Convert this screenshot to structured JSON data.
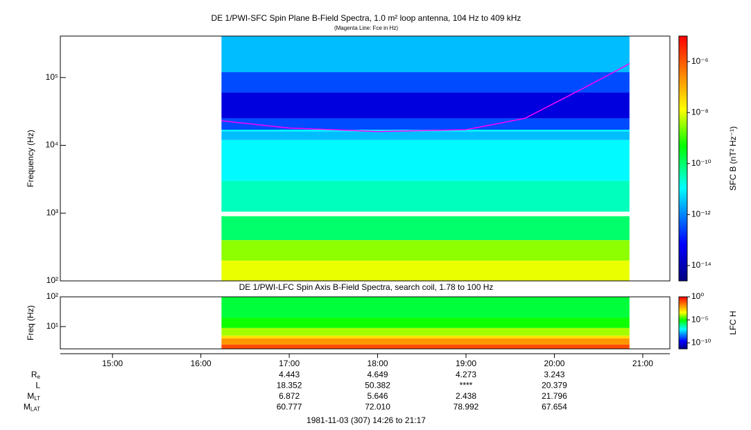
{
  "chart_data": [
    {
      "type": "spectrogram",
      "title": "DE 1/PWI-SFC  Spin Plane B-Field Spectra, 1.0 m² loop antenna, 104 Hz to 409 kHz",
      "subtitle": "(Magenta Line: Fce in Hz)",
      "y_label": "Frequency (Hz)",
      "xlim": [
        866,
        1277
      ],
      "ylim": [
        100,
        409000
      ],
      "log_y": true,
      "yticks": [
        {
          "value": 100,
          "label": "10²"
        },
        {
          "value": 1000,
          "label": "10³"
        },
        {
          "value": 10000,
          "label": "10⁴"
        },
        {
          "value": 100000,
          "label": "10⁵"
        }
      ],
      "time_range": [
        974,
        1251
      ],
      "bands": [
        {
          "lo": 100,
          "hi": 200,
          "value": 1e-08
        },
        {
          "lo": 200,
          "hi": 400,
          "value": 3e-09
        },
        {
          "lo": 400,
          "hi": 900,
          "value": 1e-10
        },
        {
          "lo": 1050,
          "hi": 3000,
          "value": 3e-11
        },
        {
          "lo": 3000,
          "hi": 12000,
          "value": 1e-11
        },
        {
          "lo": 12000,
          "hi": 16000,
          "value": 3e-12
        },
        {
          "lo": 16000,
          "hi": 17000,
          "value": 1e-11
        },
        {
          "lo": 17000,
          "hi": 25000,
          "value": 3e-13
        },
        {
          "lo": 25000,
          "hi": 60000,
          "value": 3e-14
        },
        {
          "lo": 60000,
          "hi": 120000,
          "value": 3e-13
        },
        {
          "lo": 120000,
          "hi": 409000,
          "value": 3e-12
        }
      ],
      "line": {
        "color": "#ff00ff",
        "x": [
          974,
          1020,
          1080,
          1140,
          1180,
          1220,
          1251
        ],
        "y": [
          23000,
          18000,
          16000,
          17000,
          25000,
          70000,
          160000
        ]
      },
      "colorbar": {
        "label": "SFC B (nT² Hz⁻¹)",
        "lim": [
          2.5e-15,
          1e-05
        ],
        "ticks": [
          {
            "value": 1e-06,
            "label": "10⁻⁶"
          },
          {
            "value": 1e-08,
            "label": "10⁻⁸"
          },
          {
            "value": 1e-10,
            "label": "10⁻¹⁰"
          },
          {
            "value": 1e-12,
            "label": "10⁻¹²"
          },
          {
            "value": 1e-14,
            "label": "10⁻¹⁴"
          }
        ]
      }
    },
    {
      "type": "spectrogram",
      "title": "DE 1/PWI-LFC  Spin Axis B-Field Spectra, search coil, 1.78 to 100 Hz",
      "y_label": "Freq (Hz)",
      "xlim": [
        866,
        1277
      ],
      "ylim": [
        1.78,
        100
      ],
      "log_y": true,
      "xticks": [
        {
          "value": 900,
          "label": "15:00"
        },
        {
          "value": 960,
          "label": "16:00"
        },
        {
          "value": 1020,
          "label": "17:00"
        },
        {
          "value": 1080,
          "label": "18:00"
        },
        {
          "value": 1140,
          "label": "19:00"
        },
        {
          "value": 1200,
          "label": "20:00"
        },
        {
          "value": 1260,
          "label": "21:00"
        }
      ],
      "yticks": [
        {
          "value": 10,
          "label": "10¹"
        },
        {
          "value": 100,
          "label": "10²"
        }
      ],
      "time_range": [
        974,
        1251
      ],
      "bands": [
        {
          "lo": 1.78,
          "hi": 2.5,
          "value": 0.1
        },
        {
          "lo": 2.5,
          "hi": 4,
          "value": 0.01
        },
        {
          "lo": 4,
          "hi": 5,
          "value": 0.001
        },
        {
          "lo": 5,
          "hi": 9,
          "value": 0.0001
        },
        {
          "lo": 9,
          "hi": 20,
          "value": 1e-05
        },
        {
          "lo": 20,
          "hi": 100,
          "value": 3e-06
        }
      ],
      "colorbar": {
        "label": "LFC H",
        "lim": [
          5e-12,
          1
        ],
        "ticks": [
          {
            "value": 1,
            "label": "10⁰"
          },
          {
            "value": 1e-05,
            "label": "10⁻⁵"
          },
          {
            "value": 1e-10,
            "label": "10⁻¹⁰"
          }
        ]
      }
    }
  ],
  "ephemeris": {
    "rows": [
      {
        "label": "R",
        "sub": "e",
        "values": [
          "4.443",
          "4.649",
          "4.273",
          "3.243"
        ]
      },
      {
        "label": "L",
        "sub": "",
        "values": [
          "18.352",
          "50.382",
          "****",
          "20.379"
        ]
      },
      {
        "label": "M",
        "sub": "LT",
        "values": [
          "6.872",
          "5.646",
          "2.438",
          "21.796"
        ]
      },
      {
        "label": "M",
        "sub": "LAT",
        "values": [
          "60.777",
          "72.010",
          "78.992",
          "67.654"
        ]
      }
    ],
    "footer": "1981-11-03 (307) 14:26 to 21:17"
  }
}
